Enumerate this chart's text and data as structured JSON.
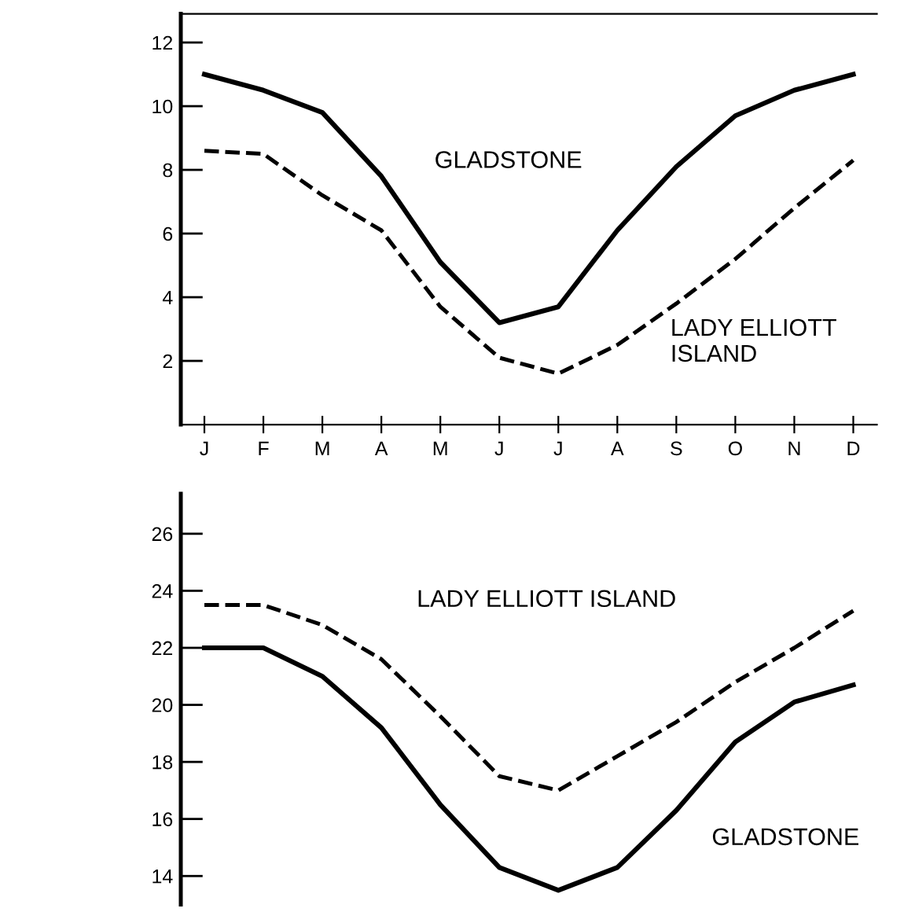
{
  "chart_data": [
    {
      "type": "line",
      "categories": [
        "J",
        "F",
        "M",
        "A",
        "M",
        "J",
        "J",
        "A",
        "S",
        "O",
        "N",
        "D"
      ],
      "ylim": [
        0,
        12.9
      ],
      "yticks": [
        2,
        4,
        6,
        8,
        10,
        12
      ],
      "grid": false,
      "legend": false,
      "marker": "none",
      "series": [
        {
          "name": "GLADSTONE",
          "color": "#000000",
          "line_style": "solid",
          "values": [
            11.0,
            10.5,
            9.8,
            7.8,
            5.1,
            3.2,
            3.7,
            6.1,
            8.1,
            9.7,
            10.5,
            11.0
          ]
        },
        {
          "name": "LADY ELLIOTT ISLAND",
          "color": "#000000",
          "line_style": "dashed",
          "values": [
            8.6,
            8.5,
            7.2,
            6.1,
            3.7,
            2.1,
            1.6,
            2.5,
            3.8,
            5.2,
            6.8,
            8.3
          ]
        }
      ]
    },
    {
      "type": "line",
      "categories": [
        null,
        null,
        null,
        null,
        null,
        null,
        null,
        null,
        null,
        null,
        null,
        null
      ],
      "ylim": [
        13,
        27.4
      ],
      "yticks": [
        14,
        16,
        18,
        20,
        22,
        24,
        26
      ],
      "tick_labels": "y",
      "grid": false,
      "legend": false,
      "marker": "none",
      "series": [
        {
          "name": "LADY ELLIOTT ISLAND",
          "color": "#000000",
          "line_style": "dashed",
          "values": [
            23.5,
            23.5,
            22.8,
            21.6,
            19.6,
            17.5,
            17.0,
            18.2,
            19.4,
            20.8,
            22.0,
            23.3
          ]
        },
        {
          "name": "GLADSTONE",
          "color": "#000000",
          "line_style": "solid",
          "values": [
            22.0,
            22.0,
            21.0,
            19.2,
            16.5,
            14.3,
            13.5,
            14.3,
            16.3,
            18.7,
            20.1,
            20.7
          ]
        }
      ]
    }
  ]
}
